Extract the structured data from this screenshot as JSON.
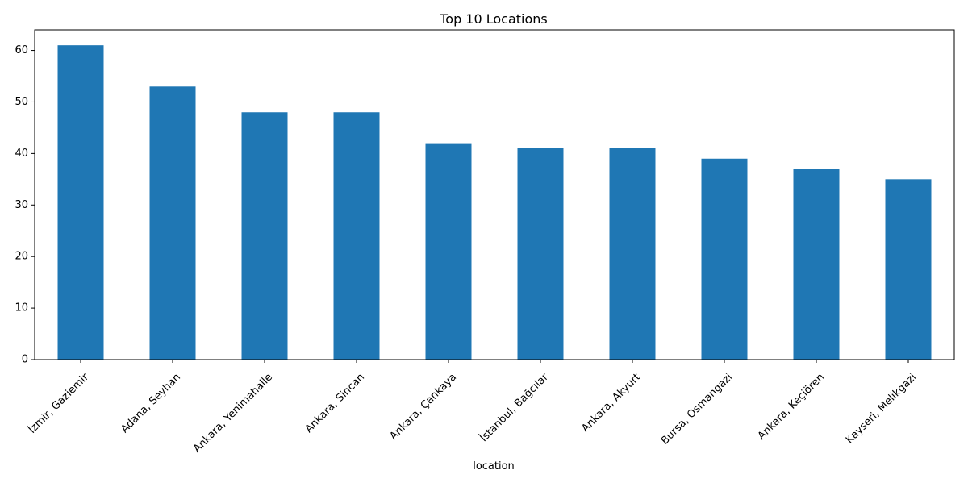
{
  "chart_data": {
    "type": "bar",
    "title": "Top 10 Locations",
    "xlabel": "location",
    "ylabel": "",
    "categories": [
      "İzmir, Gaziemir",
      "Adana, Seyhan",
      "Ankara, Yenimahalle",
      "Ankara, Sincan",
      "Ankara, Çankaya",
      "İstanbul, Bağcılar",
      "Ankara, Akyurt",
      "Bursa, Osmangazi",
      "Ankara, Keçiören",
      "Kayseri, Melikgazi"
    ],
    "values": [
      61,
      53,
      48,
      48,
      42,
      41,
      41,
      39,
      37,
      35
    ],
    "ylim": [
      0,
      64
    ],
    "yticks": [
      0,
      10,
      20,
      30,
      40,
      50,
      60
    ],
    "grid": false,
    "legend": "none",
    "bar_color": "#1f77b4"
  }
}
